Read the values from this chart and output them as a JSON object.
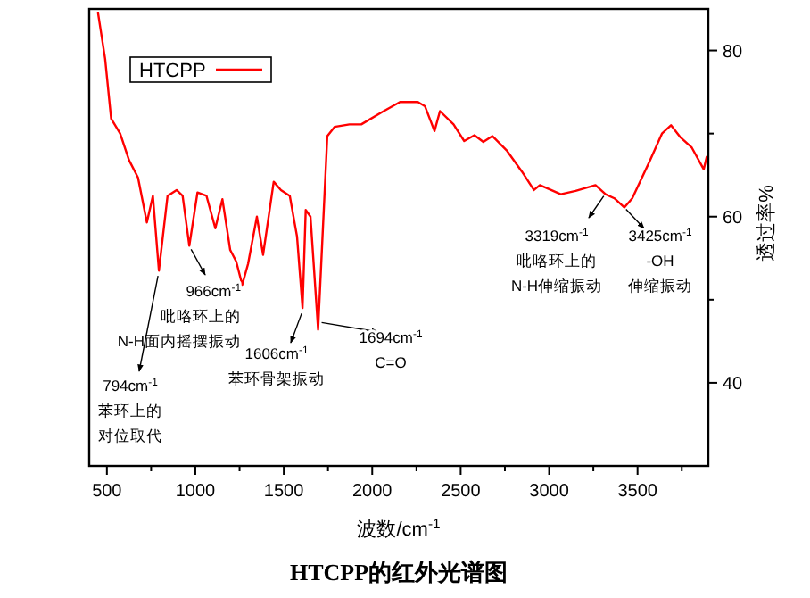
{
  "chart_data": {
    "type": "line",
    "title": "HTCPP的红外光谱图",
    "xlabel": "波数/cm$^{-1}$",
    "ylabel": "透过率%",
    "xlim": [
      400,
      3900
    ],
    "ylim": [
      30,
      85
    ],
    "xticks": [
      500,
      {
        "value": 750,
        "label": null
      },
      1000,
      {
        "value": 1250,
        "label": null
      },
      1500,
      {
        "value": 1750,
        "label": null
      },
      2000,
      {
        "value": 2250,
        "label": null
      },
      2500,
      {
        "value": 2750,
        "label": null
      },
      3000,
      {
        "value": 3250,
        "label": null
      },
      3500,
      {
        "value": 3750,
        "label": null
      }
    ],
    "yticks": [
      40,
      {
        "value": 50,
        "label": null
      },
      60,
      {
        "value": 70,
        "label": null
      },
      80
    ],
    "legend": "top left",
    "grid": false,
    "series": [
      {
        "name": "HTCPP",
        "color": "#ff0000",
        "x": [
          450,
          490,
          524,
          575,
          625,
          676,
          726,
          760,
          794,
          843,
          894,
          928,
          966,
          1012,
          1063,
          1113,
          1153,
          1197,
          1231,
          1265,
          1298,
          1348,
          1383,
          1443,
          1484,
          1534,
          1575,
          1606,
          1624,
          1651,
          1694,
          1719,
          1746,
          1787,
          1871,
          1938,
          2056,
          2157,
          2258,
          2298,
          2352,
          2383,
          2460,
          2520,
          2578,
          2628,
          2679,
          2763,
          2847,
          2914,
          2948,
          3066,
          3150,
          3262,
          3319,
          3369,
          3425,
          3470,
          3571,
          3638,
          3689,
          3740,
          3807,
          3874,
          3891
        ],
        "values": [
          84.5,
          79,
          71.8,
          70,
          66.8,
          64.7,
          59.3,
          62.5,
          53.5,
          62.5,
          63.2,
          62.5,
          56.5,
          62.9,
          62.5,
          58.6,
          62.1,
          56,
          54.6,
          51.8,
          54.3,
          60,
          55.4,
          64.2,
          63.2,
          62.5,
          57.6,
          49,
          60.8,
          60,
          46.4,
          57.6,
          69.7,
          70.8,
          71.1,
          71.1,
          72.6,
          73.8,
          73.8,
          73.3,
          70.3,
          72.7,
          71.1,
          69.1,
          69.8,
          69,
          69.7,
          67.9,
          65.4,
          63.2,
          63.8,
          62.7,
          63.1,
          63.8,
          62.7,
          62.2,
          61.1,
          62.2,
          66.8,
          70,
          71,
          69.6,
          68.3,
          65.7,
          67.2
        ]
      }
    ],
    "annotations": [
      {
        "text": "3425cm$^{-1}$",
        "x": 3425,
        "y": 61.1
      },
      "-OH",
      "伸缩振动",
      {
        "text": "3319cm$^{-1}$",
        "x": 3319,
        "y": 62.7
      },
      "吡咯环上的",
      "N-H伸缩振动",
      {
        "text": "966cm$^{-1}$",
        "x": 966,
        "y": 56.5
      },
      "吡咯环上的",
      "N-H面内摇摆振动",
      {
        "text": "794cm$^{-1}$",
        "x": 794,
        "y": 53.5
      },
      "苯环上的",
      "对位取代",
      {
        "text": "1606cm$^{-1}$",
        "x": 1606,
        "y": 49
      },
      "苯环骨架振动",
      {
        "text": "1694cm$^{-1}$",
        "x": 1694,
        "y": 46.4
      },
      "C=O"
    ]
  }
}
